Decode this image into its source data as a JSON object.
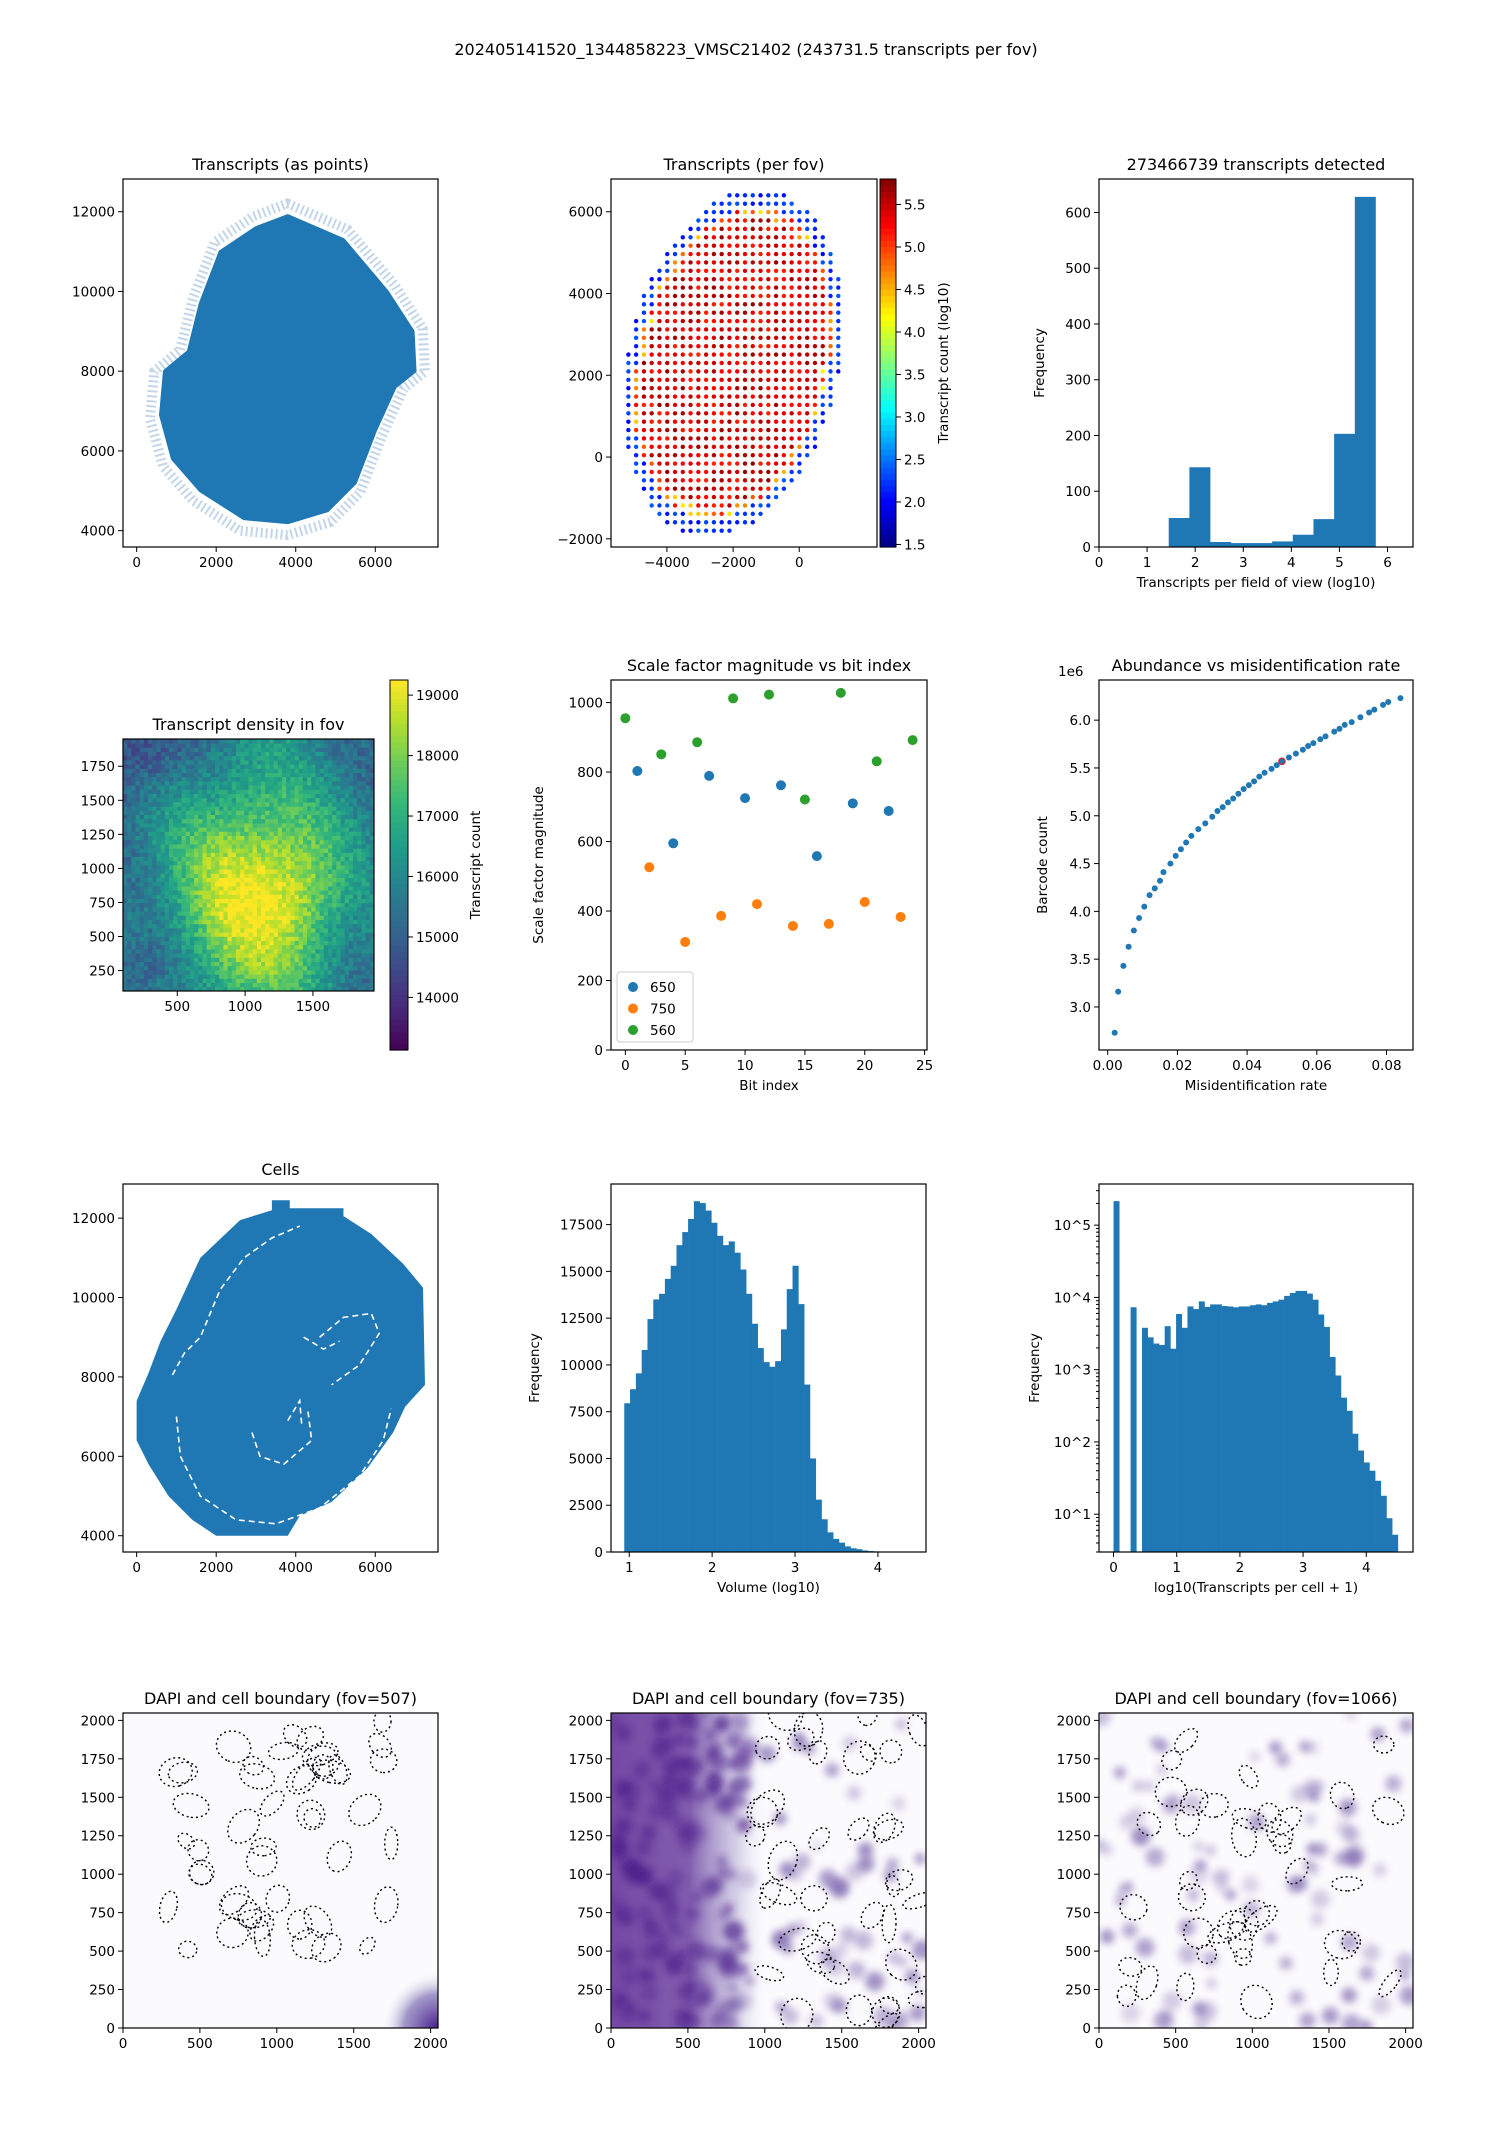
{
  "suptitle": "202405141520_1344858223_VMSC21402 (243731.5 transcripts per fov)",
  "chart_data": [
    {
      "id": "transcripts-points",
      "type": "scatter",
      "title": "Transcripts (as points)",
      "xlabel": "",
      "ylabel": "",
      "xlim": [
        -343,
        7577
      ],
      "ylim": [
        3590,
        12820
      ],
      "xticks": [
        0,
        2000,
        4000,
        6000
      ],
      "yticks": [
        4000,
        6000,
        8000,
        10000,
        12000
      ],
      "color": "#1f77b4"
    },
    {
      "id": "transcripts-per-fov",
      "type": "scatter",
      "title": "Transcripts (per fov)",
      "xlabel": "",
      "ylabel": "",
      "xlim": [
        -5690,
        2350
      ],
      "ylim": [
        -2200,
        6800
      ],
      "xticks": [
        -4000,
        -2000,
        0
      ],
      "xticklabels": [
        "−4000",
        "−2000",
        "0"
      ],
      "yticks": [
        -2000,
        0,
        2000,
        4000,
        6000
      ],
      "yticklabels": [
        "−2000",
        "0",
        "2000",
        "4000",
        "6000"
      ],
      "colorbar": {
        "label": "Transcript count (log10)",
        "range": [
          1.47,
          5.8
        ],
        "ticks": [
          1.5,
          2.0,
          2.5,
          3.0,
          3.5,
          4.0,
          4.5,
          5.0,
          5.5
        ],
        "ticklabels": [
          "1.5",
          "2.0",
          "2.5",
          "3.0",
          "3.5",
          "4.0",
          "4.5",
          "5.0",
          "5.5"
        ],
        "cmap": "jet"
      },
      "edge_value": 2.0,
      "interior_value": 5.4
    },
    {
      "id": "transcripts-per-fov-hist",
      "type": "bar",
      "title": "273466739 transcripts detected",
      "xlabel": "Transcripts per field of view (log10)",
      "ylabel": "Frequency",
      "xlim": [
        0,
        6.53
      ],
      "ylim": [
        0,
        660
      ],
      "xticks": [
        0,
        1,
        2,
        3,
        4,
        5,
        6
      ],
      "yticks": [
        0,
        100,
        200,
        300,
        400,
        500,
        600
      ],
      "bin_start": 1.45,
      "bin_width": 0.43,
      "values": [
        52,
        143,
        9,
        7,
        7,
        10,
        22,
        50,
        203,
        628
      ],
      "color": "#1f77b4"
    },
    {
      "id": "transcript-density",
      "type": "heatmap",
      "title": "Transcript density in fov",
      "xlabel": "",
      "ylabel": "",
      "xlim": [
        100,
        1950
      ],
      "ylim": [
        100,
        1950
      ],
      "xticks": [
        500,
        1000,
        1500
      ],
      "yticks": [
        250,
        500,
        750,
        1000,
        1250,
        1500,
        1750
      ],
      "colorbar": {
        "label": "Transcript count",
        "range": [
          13130,
          19250
        ],
        "ticks": [
          14000,
          15000,
          16000,
          17000,
          18000,
          19000
        ],
        "ticklabels": [
          "14000",
          "15000",
          "16000",
          "17000",
          "18000",
          "19000"
        ],
        "cmap": "viridis"
      },
      "peak_value": 19000,
      "baseline_value": 15500
    },
    {
      "id": "scale-factor",
      "type": "scatter",
      "title": "Scale factor magnitude vs bit index",
      "xlabel": "Bit index",
      "ylabel": "Scale factor magnitude",
      "xlim": [
        -1.2,
        25.2
      ],
      "ylim": [
        0,
        1065
      ],
      "xticks": [
        0,
        5,
        10,
        15,
        20,
        25
      ],
      "yticks": [
        0,
        200,
        400,
        600,
        800,
        1000
      ],
      "legend": "lower-left",
      "series": [
        {
          "name": "650",
          "color": "#1f77b4",
          "x": [
            1,
            4,
            7,
            10,
            13,
            16,
            19,
            22
          ],
          "y": [
            803,
            595,
            789,
            725,
            762,
            558,
            710,
            688
          ]
        },
        {
          "name": "750",
          "color": "#ff7f0e",
          "x": [
            2,
            5,
            8,
            11,
            14,
            17,
            20,
            23
          ],
          "y": [
            526,
            311,
            386,
            420,
            357,
            363,
            426,
            383
          ]
        },
        {
          "name": "560",
          "color": "#2ca02c",
          "x": [
            0,
            3,
            6,
            9,
            12,
            15,
            18,
            21,
            24
          ],
          "y": [
            955,
            851,
            886,
            1012,
            1023,
            721,
            1028,
            831,
            892
          ]
        }
      ]
    },
    {
      "id": "abundance-misid",
      "type": "scatter",
      "title": "Abundance vs misidentification rate",
      "xlabel": "Misidentification rate",
      "ylabel": "Barcode count",
      "offset_text": "1e6",
      "xlim": [
        -0.0025,
        0.0876
      ],
      "ylim": [
        2.55,
        6.42
      ],
      "xticks": [
        0,
        0.02,
        0.04,
        0.06,
        0.08
      ],
      "xticklabels": [
        "0.00",
        "0.02",
        "0.04",
        "0.06",
        "0.08"
      ],
      "yticks": [
        3.0,
        3.5,
        4.0,
        4.5,
        5.0,
        5.5,
        6.0
      ],
      "yticklabels": [
        "3.0",
        "3.5",
        "4.0",
        "4.5",
        "5.0",
        "5.5",
        "6.0"
      ],
      "color": "#1f77b4",
      "x": [
        0.002,
        0.003,
        0.0045,
        0.006,
        0.0075,
        0.009,
        0.0105,
        0.012,
        0.0135,
        0.015,
        0.016,
        0.018,
        0.0195,
        0.021,
        0.0225,
        0.024,
        0.026,
        0.028,
        0.03,
        0.0315,
        0.033,
        0.0345,
        0.036,
        0.0375,
        0.039,
        0.0405,
        0.042,
        0.0435,
        0.045,
        0.047,
        0.0485,
        0.05,
        0.052,
        0.054,
        0.056,
        0.0575,
        0.059,
        0.061,
        0.0625,
        0.065,
        0.0665,
        0.068,
        0.07,
        0.0725,
        0.075,
        0.0765,
        0.079,
        0.0805,
        0.084
      ],
      "y": [
        2.73,
        3.16,
        3.43,
        3.63,
        3.8,
        3.93,
        4.05,
        4.17,
        4.24,
        4.32,
        4.41,
        4.5,
        4.58,
        4.65,
        4.72,
        4.79,
        4.86,
        4.92,
        4.99,
        5.05,
        5.09,
        5.14,
        5.18,
        5.23,
        5.28,
        5.32,
        5.36,
        5.41,
        5.45,
        5.49,
        5.53,
        5.57,
        5.61,
        5.65,
        5.69,
        5.73,
        5.76,
        5.8,
        5.83,
        5.88,
        5.91,
        5.95,
        5.98,
        6.03,
        6.08,
        6.11,
        6.16,
        6.19,
        6.23
      ],
      "highlight": {
        "x": 0.05,
        "y": 5.57,
        "color": "#d62728"
      }
    },
    {
      "id": "cells",
      "type": "scatter",
      "title": "Cells",
      "xlabel": "",
      "ylabel": "",
      "xlim": [
        -343,
        7577
      ],
      "ylim": [
        3590,
        12860
      ],
      "xticks": [
        0,
        2000,
        4000,
        6000
      ],
      "yticks": [
        4000,
        6000,
        8000,
        10000,
        12000
      ],
      "color": "#1f77b4"
    },
    {
      "id": "volume-hist",
      "type": "bar",
      "title": "",
      "xlabel": "Volume (log10)",
      "ylabel": "Frequency",
      "xlim": [
        0.78,
        4.58
      ],
      "ylim": [
        0,
        19670
      ],
      "xticks": [
        1,
        2,
        3,
        4
      ],
      "yticks": [
        0,
        2500,
        5000,
        7500,
        10000,
        12500,
        15000,
        17500
      ],
      "bin_start": 0.94,
      "bin_width": 0.07,
      "color": "#1f77b4",
      "values": [
        7950,
        8700,
        9550,
        10800,
        12450,
        13500,
        13800,
        14600,
        15300,
        16400,
        17100,
        17800,
        18750,
        18650,
        18250,
        17600,
        16900,
        16400,
        16600,
        16000,
        15100,
        13800,
        12200,
        10900,
        10150,
        9900,
        10200,
        11900,
        14050,
        15300,
        13250,
        8950,
        5000,
        2800,
        1750,
        1050,
        700,
        500,
        300,
        200,
        150,
        80,
        50,
        30
      ]
    },
    {
      "id": "transcripts-per-cell-hist",
      "type": "bar",
      "title": "",
      "xlabel": "log10(Transcripts per cell + 1)",
      "ylabel": "Frequency",
      "yscale": "log",
      "xlim": [
        -0.23,
        4.74
      ],
      "ylim": [
        3.0,
        371000
      ],
      "xticks": [
        0,
        1,
        2,
        3,
        4
      ],
      "yticks": [
        10,
        100,
        1000,
        10000,
        100000
      ],
      "yticklabels": [
        "10^1",
        "10^2",
        "10^3",
        "10^4",
        "10^5"
      ],
      "bin_start": 0,
      "bin_width": 0.09,
      "color": "#1f77b4",
      "values": [
        215000,
        0,
        0,
        7300,
        0,
        3800,
        2800,
        2300,
        2200,
        4000,
        1950,
        5900,
        3800,
        7500,
        6900,
        8800,
        7400,
        8000,
        8000,
        7600,
        7500,
        7300,
        7500,
        7500,
        7800,
        8000,
        7800,
        8400,
        8800,
        9300,
        10500,
        11500,
        12300,
        12300,
        11300,
        9300,
        5800,
        3900,
        1500,
        830,
        410,
        270,
        130,
        76,
        52,
        40,
        29,
        18,
        8.8,
        5.2
      ]
    },
    {
      "id": "dapi-507",
      "type": "image",
      "title": "DAPI and cell boundary (fov=507)",
      "xlim": [
        0,
        2048
      ],
      "ylim": [
        0,
        2048
      ],
      "xticks": [
        0,
        500,
        1000,
        1500,
        2000
      ],
      "yticks": [
        0,
        250,
        500,
        750,
        1000,
        1250,
        1500,
        1750,
        2000
      ],
      "cmap": "Purples",
      "fov": 507
    },
    {
      "id": "dapi-735",
      "type": "image",
      "title": "DAPI and cell boundary (fov=735)",
      "xlim": [
        0,
        2048
      ],
      "ylim": [
        0,
        2048
      ],
      "xticks": [
        0,
        500,
        1000,
        1500,
        2000
      ],
      "yticks": [
        0,
        250,
        500,
        750,
        1000,
        1250,
        1500,
        1750,
        2000
      ],
      "cmap": "Purples",
      "fov": 735
    },
    {
      "id": "dapi-1066",
      "type": "image",
      "title": "DAPI and cell boundary (fov=1066)",
      "xlim": [
        0,
        2048
      ],
      "ylim": [
        0,
        2048
      ],
      "xticks": [
        0,
        500,
        1000,
        1500,
        2000
      ],
      "yticks": [
        0,
        250,
        500,
        750,
        1000,
        1250,
        1500,
        1750,
        2000
      ],
      "cmap": "Purples",
      "fov": 1066
    }
  ]
}
